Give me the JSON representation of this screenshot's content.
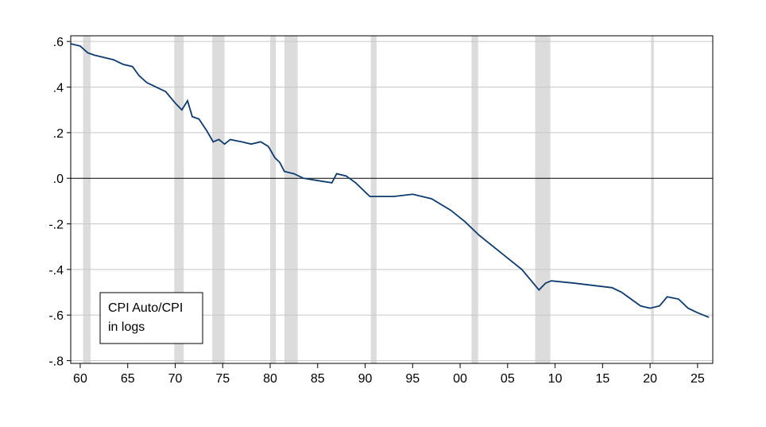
{
  "chart_data": {
    "type": "line",
    "x": [
      1959.0,
      1960.0,
      1960.8,
      1961.5,
      1962.5,
      1963.5,
      1964.5,
      1965.5,
      1966.2,
      1967.0,
      1968.0,
      1969.0,
      1970.0,
      1970.7,
      1971.3,
      1971.8,
      1972.5,
      1973.3,
      1974.0,
      1974.6,
      1975.2,
      1975.8,
      1977.0,
      1978.0,
      1979.0,
      1979.8,
      1980.5,
      1981.0,
      1981.5,
      1982.5,
      1983.5,
      1985.0,
      1986.5,
      1987.0,
      1988.0,
      1989.0,
      1990.5,
      1991.5,
      1993.0,
      1995.0,
      1997.0,
      1999.0,
      2000.5,
      2002.0,
      2003.5,
      2005.0,
      2006.5,
      2007.5,
      2008.3,
      2009.0,
      2009.6,
      2012.0,
      2014.0,
      2016.0,
      2017.0,
      2018.0,
      2019.0,
      2020.0,
      2021.0,
      2021.8,
      2023.0,
      2024.0,
      2025.0,
      2026.2
    ],
    "series": [
      {
        "color": "#0d3b6e",
        "values": [
          0.59,
          0.58,
          0.55,
          0.54,
          0.53,
          0.52,
          0.5,
          0.49,
          0.45,
          0.42,
          0.4,
          0.38,
          0.33,
          0.3,
          0.34,
          0.27,
          0.26,
          0.21,
          0.16,
          0.17,
          0.15,
          0.17,
          0.16,
          0.15,
          0.16,
          0.14,
          0.09,
          0.07,
          0.03,
          0.02,
          0.0,
          -0.01,
          -0.02,
          0.02,
          0.01,
          -0.02,
          -0.08,
          -0.08,
          -0.08,
          -0.07,
          -0.09,
          -0.14,
          -0.19,
          -0.25,
          -0.3,
          -0.35,
          -0.4,
          -0.45,
          -0.49,
          -0.46,
          -0.45,
          -0.46,
          -0.47,
          -0.48,
          -0.5,
          -0.53,
          -0.56,
          -0.57,
          -0.56,
          -0.52,
          -0.53,
          -0.57,
          -0.59,
          -0.61
        ]
      }
    ],
    "recessions": [
      [
        1960.3,
        1961.1
      ],
      [
        1969.9,
        1970.9
      ],
      [
        1973.9,
        1975.2
      ],
      [
        1980.0,
        1980.6
      ],
      [
        1981.5,
        1982.9
      ],
      [
        1990.6,
        1991.2
      ],
      [
        2001.2,
        2001.9
      ],
      [
        2007.9,
        2009.5
      ],
      [
        2020.1,
        2020.4
      ]
    ],
    "recession_color": "#dcdcdc",
    "annotation": [
      "CPI Auto/CPI",
      "in logs"
    ],
    "xlim": [
      1959.0,
      2026.6
    ],
    "ylim": [
      -0.812,
      0.625
    ],
    "xticks": [
      {
        "value": 1960,
        "label": "60"
      },
      {
        "value": 1965,
        "label": "65"
      },
      {
        "value": 1970,
        "label": "70"
      },
      {
        "value": 1975,
        "label": "75"
      },
      {
        "value": 1980,
        "label": "80"
      },
      {
        "value": 1985,
        "label": "85"
      },
      {
        "value": 1990,
        "label": "90"
      },
      {
        "value": 1995,
        "label": "95"
      },
      {
        "value": 2000,
        "label": "00"
      },
      {
        "value": 2005,
        "label": "05"
      },
      {
        "value": 2010,
        "label": "10"
      },
      {
        "value": 2015,
        "label": "15"
      },
      {
        "value": 2020,
        "label": "20"
      },
      {
        "value": 2025,
        "label": "25"
      }
    ],
    "yticks": [
      {
        "value": 0.6,
        "label": ".6"
      },
      {
        "value": 0.4,
        "label": ".4"
      },
      {
        "value": 0.2,
        "label": ".2"
      },
      {
        "value": 0,
        "label": ".0"
      },
      {
        "value": -0.2,
        "label": "-.2"
      },
      {
        "value": -0.4,
        "label": "-.4"
      },
      {
        "value": -0.6,
        "label": "-.6"
      },
      {
        "value": -0.8,
        "label": "-.8"
      }
    ],
    "grid": true
  }
}
